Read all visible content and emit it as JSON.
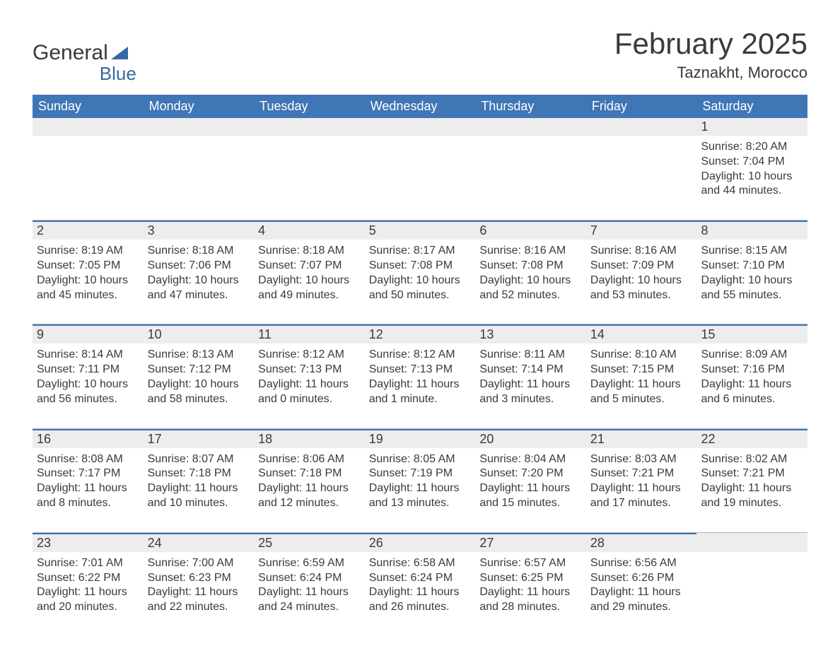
{
  "logo": {
    "text1": "General",
    "text2": "Blue",
    "accent_color": "#3568a6"
  },
  "title": "February 2025",
  "location": "Taznakht, Morocco",
  "colors": {
    "header_bg": "#3f76b6",
    "header_text": "#ffffff",
    "daynum_bg": "#ededed",
    "daynum_border": "#3f76b6",
    "text": "#3a3a3a",
    "background": "#ffffff"
  },
  "dow": [
    "Sunday",
    "Monday",
    "Tuesday",
    "Wednesday",
    "Thursday",
    "Friday",
    "Saturday"
  ],
  "weeks": [
    [
      null,
      null,
      null,
      null,
      null,
      null,
      {
        "n": "1",
        "sunrise": "8:20 AM",
        "sunset": "7:04 PM",
        "daylight": "10 hours and 44 minutes."
      }
    ],
    [
      {
        "n": "2",
        "sunrise": "8:19 AM",
        "sunset": "7:05 PM",
        "daylight": "10 hours and 45 minutes."
      },
      {
        "n": "3",
        "sunrise": "8:18 AM",
        "sunset": "7:06 PM",
        "daylight": "10 hours and 47 minutes."
      },
      {
        "n": "4",
        "sunrise": "8:18 AM",
        "sunset": "7:07 PM",
        "daylight": "10 hours and 49 minutes."
      },
      {
        "n": "5",
        "sunrise": "8:17 AM",
        "sunset": "7:08 PM",
        "daylight": "10 hours and 50 minutes."
      },
      {
        "n": "6",
        "sunrise": "8:16 AM",
        "sunset": "7:08 PM",
        "daylight": "10 hours and 52 minutes."
      },
      {
        "n": "7",
        "sunrise": "8:16 AM",
        "sunset": "7:09 PM",
        "daylight": "10 hours and 53 minutes."
      },
      {
        "n": "8",
        "sunrise": "8:15 AM",
        "sunset": "7:10 PM",
        "daylight": "10 hours and 55 minutes."
      }
    ],
    [
      {
        "n": "9",
        "sunrise": "8:14 AM",
        "sunset": "7:11 PM",
        "daylight": "10 hours and 56 minutes."
      },
      {
        "n": "10",
        "sunrise": "8:13 AM",
        "sunset": "7:12 PM",
        "daylight": "10 hours and 58 minutes."
      },
      {
        "n": "11",
        "sunrise": "8:12 AM",
        "sunset": "7:13 PM",
        "daylight": "11 hours and 0 minutes."
      },
      {
        "n": "12",
        "sunrise": "8:12 AM",
        "sunset": "7:13 PM",
        "daylight": "11 hours and 1 minute."
      },
      {
        "n": "13",
        "sunrise": "8:11 AM",
        "sunset": "7:14 PM",
        "daylight": "11 hours and 3 minutes."
      },
      {
        "n": "14",
        "sunrise": "8:10 AM",
        "sunset": "7:15 PM",
        "daylight": "11 hours and 5 minutes."
      },
      {
        "n": "15",
        "sunrise": "8:09 AM",
        "sunset": "7:16 PM",
        "daylight": "11 hours and 6 minutes."
      }
    ],
    [
      {
        "n": "16",
        "sunrise": "8:08 AM",
        "sunset": "7:17 PM",
        "daylight": "11 hours and 8 minutes."
      },
      {
        "n": "17",
        "sunrise": "8:07 AM",
        "sunset": "7:18 PM",
        "daylight": "11 hours and 10 minutes."
      },
      {
        "n": "18",
        "sunrise": "8:06 AM",
        "sunset": "7:18 PM",
        "daylight": "11 hours and 12 minutes."
      },
      {
        "n": "19",
        "sunrise": "8:05 AM",
        "sunset": "7:19 PM",
        "daylight": "11 hours and 13 minutes."
      },
      {
        "n": "20",
        "sunrise": "8:04 AM",
        "sunset": "7:20 PM",
        "daylight": "11 hours and 15 minutes."
      },
      {
        "n": "21",
        "sunrise": "8:03 AM",
        "sunset": "7:21 PM",
        "daylight": "11 hours and 17 minutes."
      },
      {
        "n": "22",
        "sunrise": "8:02 AM",
        "sunset": "7:21 PM",
        "daylight": "11 hours and 19 minutes."
      }
    ],
    [
      {
        "n": "23",
        "sunrise": "7:01 AM",
        "sunset": "6:22 PM",
        "daylight": "11 hours and 20 minutes."
      },
      {
        "n": "24",
        "sunrise": "7:00 AM",
        "sunset": "6:23 PM",
        "daylight": "11 hours and 22 minutes."
      },
      {
        "n": "25",
        "sunrise": "6:59 AM",
        "sunset": "6:24 PM",
        "daylight": "11 hours and 24 minutes."
      },
      {
        "n": "26",
        "sunrise": "6:58 AM",
        "sunset": "6:24 PM",
        "daylight": "11 hours and 26 minutes."
      },
      {
        "n": "27",
        "sunrise": "6:57 AM",
        "sunset": "6:25 PM",
        "daylight": "11 hours and 28 minutes."
      },
      {
        "n": "28",
        "sunrise": "6:56 AM",
        "sunset": "6:26 PM",
        "daylight": "11 hours and 29 minutes."
      },
      null
    ]
  ],
  "labels": {
    "sunrise": "Sunrise: ",
    "sunset": "Sunset: ",
    "daylight": "Daylight: "
  }
}
